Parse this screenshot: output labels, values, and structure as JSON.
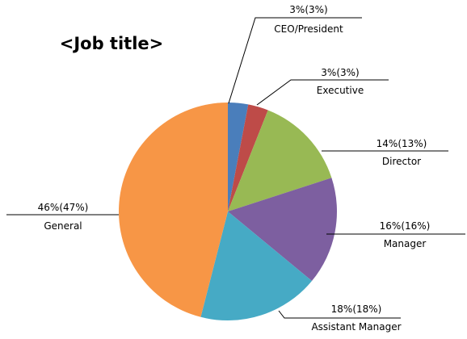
{
  "chart_data": {
    "type": "pie",
    "title": "<Job title>",
    "start_angle_deg": 0,
    "direction": "clockwise",
    "slices": [
      {
        "label": "CEO/President",
        "value": 3,
        "value_label": "3%(3%)",
        "color": "#4a7ebb"
      },
      {
        "label": "Executive",
        "value": 3,
        "value_label": "3%(3%)",
        "color": "#be4b48"
      },
      {
        "label": "Director",
        "value": 14,
        "value_label": "14%(13%)",
        "color": "#98b954"
      },
      {
        "label": "Manager",
        "value": 16,
        "value_label": "16%(16%)",
        "color": "#7d5fa0"
      },
      {
        "label": "Assistant Manager",
        "value": 18,
        "value_label": "18%(18%)",
        "color": "#46aac5"
      },
      {
        "label": "General",
        "value": 46,
        "value_label": "46%(47%)",
        "color": "#f79646"
      }
    ]
  }
}
